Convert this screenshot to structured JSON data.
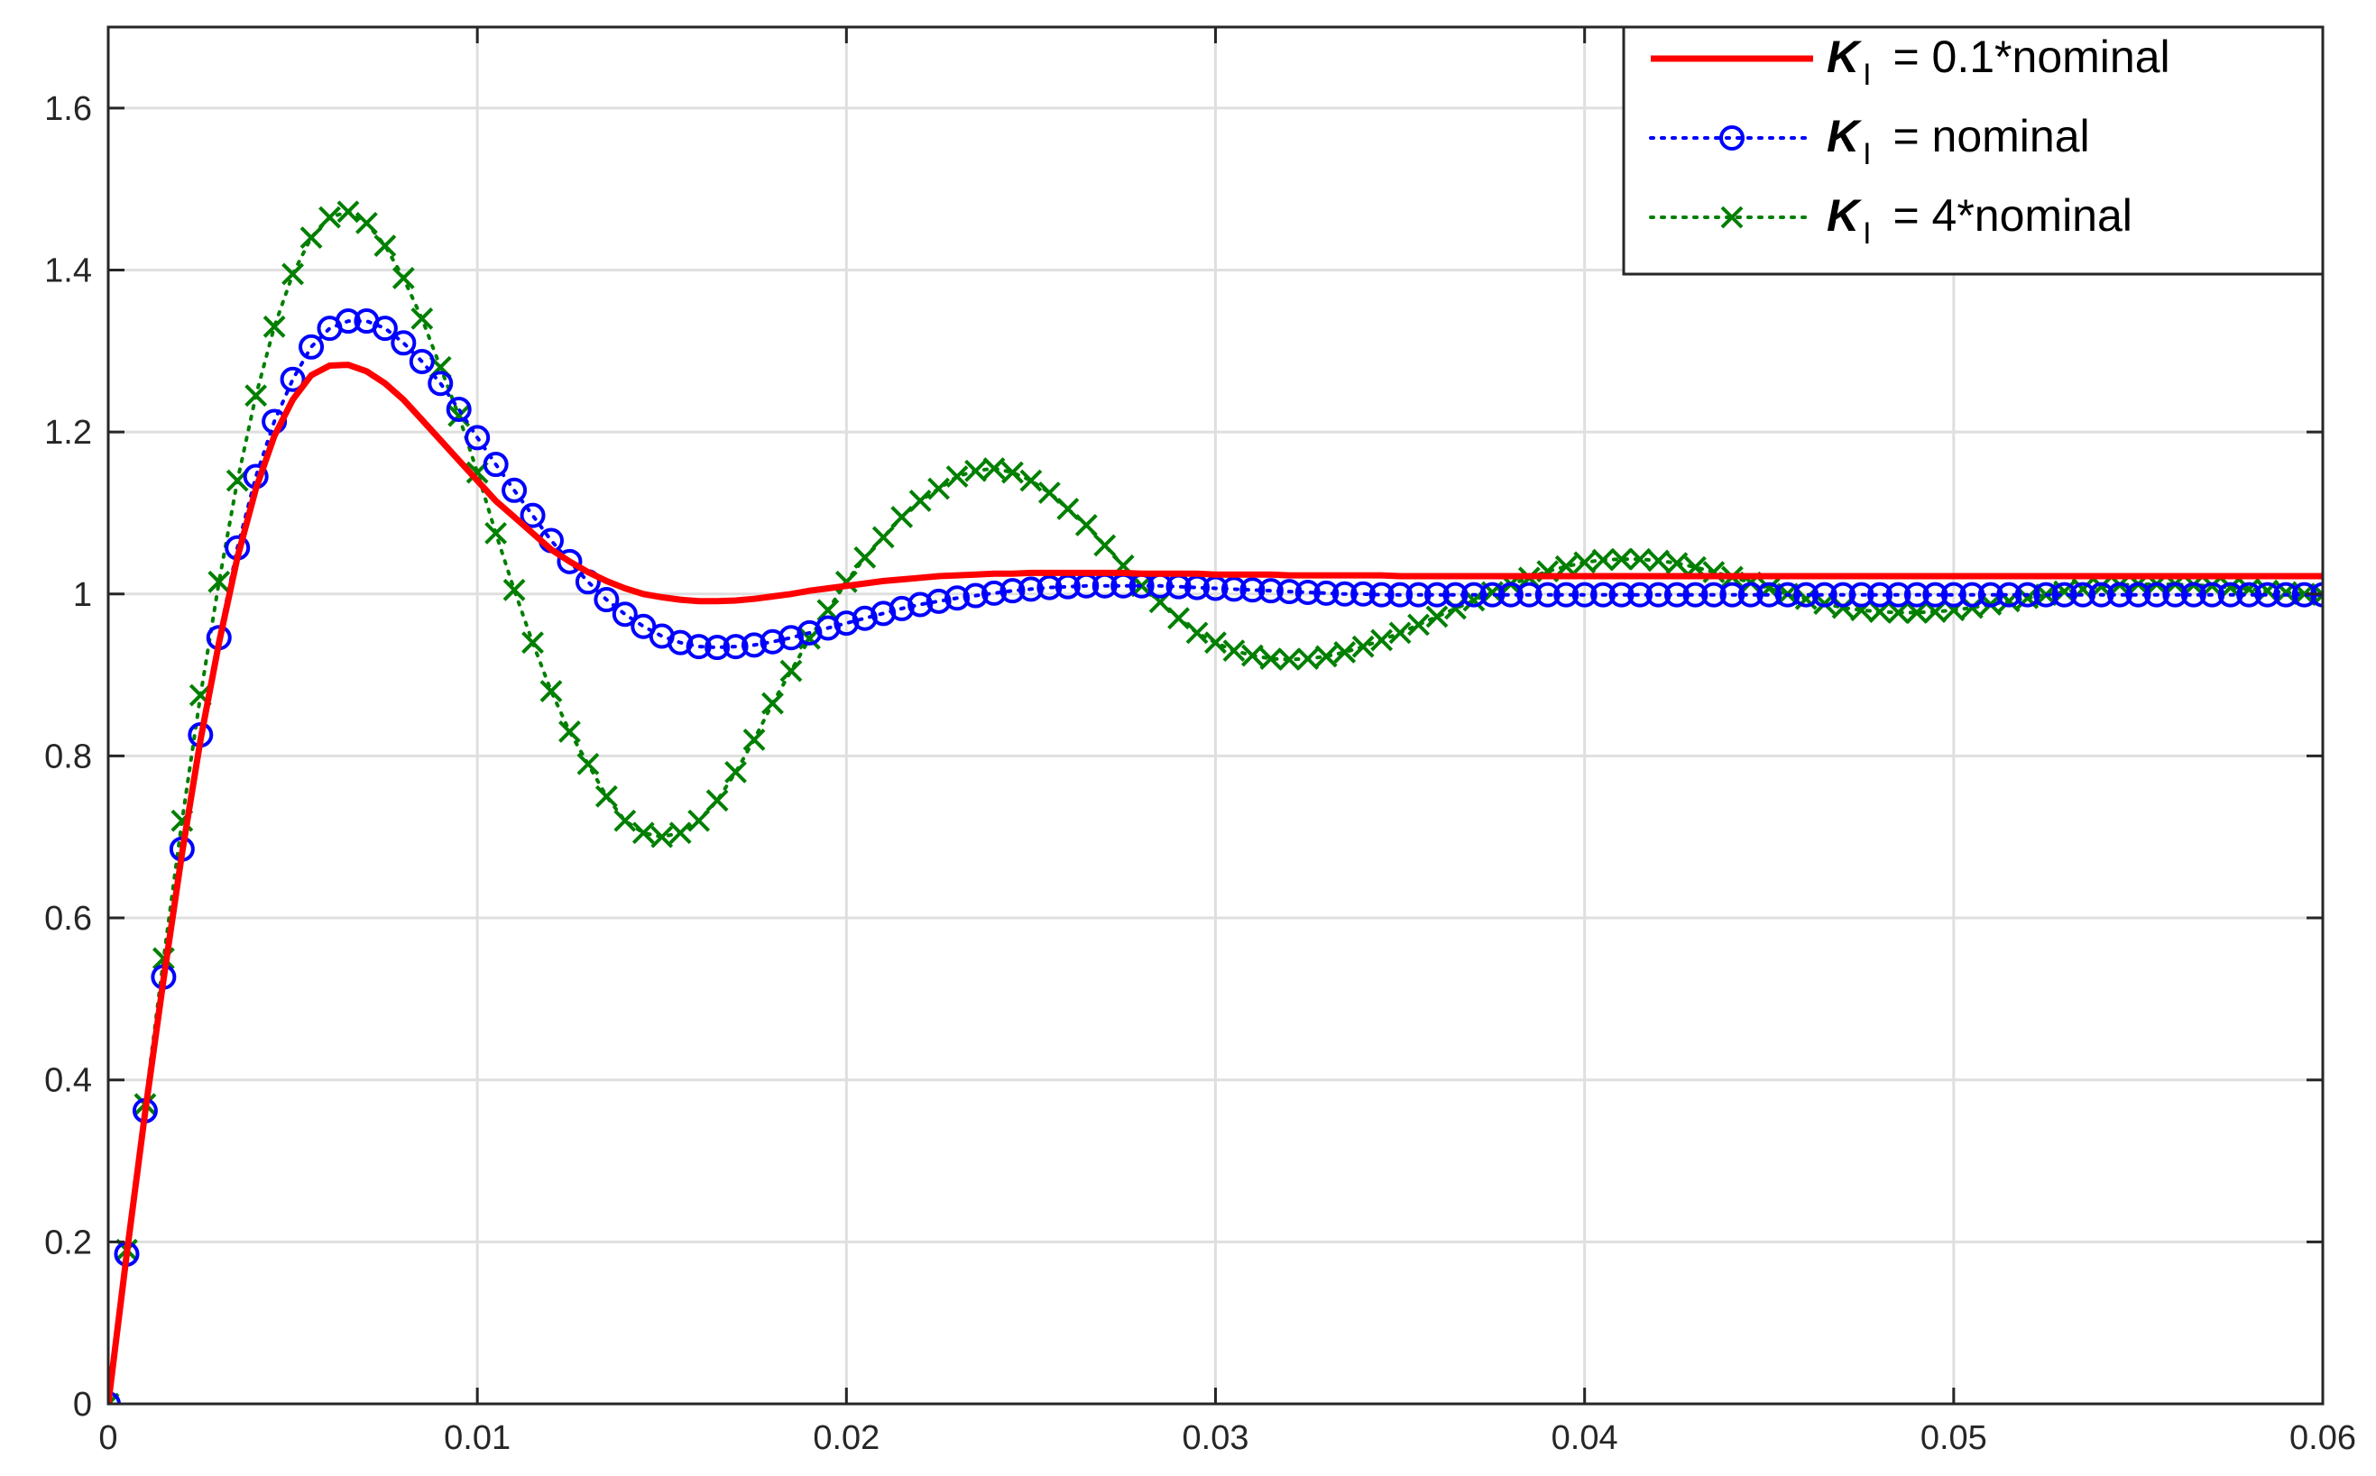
{
  "chart_data": {
    "type": "line",
    "title": "",
    "xlabel": "",
    "ylabel": "",
    "xlim": [
      0,
      0.06
    ],
    "ylim": [
      0,
      1.7
    ],
    "xticks": [
      0,
      0.01,
      0.02,
      0.03,
      0.04,
      0.05,
      0.06
    ],
    "xtick_labels": [
      "0",
      "0.01",
      "0.02",
      "0.03",
      "0.04",
      "0.05",
      "0.06"
    ],
    "yticks": [
      0,
      0.2,
      0.4,
      0.6,
      0.8,
      1,
      1.2,
      1.4,
      1.6
    ],
    "ytick_labels": [
      "0",
      "0.2",
      "0.4",
      "0.6",
      "0.8",
      "1",
      "1.2",
      "1.4",
      "1.6"
    ],
    "grid": true,
    "legend_position": "top-right",
    "legend": [
      {
        "symbol": "K",
        "subscript": "I",
        "text": " = 0.1*nominal"
      },
      {
        "symbol": "K",
        "subscript": "I",
        "text": " = nominal"
      },
      {
        "symbol": "K",
        "subscript": "I",
        "text": " = 4*nominal"
      }
    ],
    "series": [
      {
        "name": "K_I = 0.1*nominal",
        "color": "#ff0000",
        "line": "solid",
        "marker": "none",
        "x": [
          0,
          0.0005,
          0.001,
          0.0015,
          0.002,
          0.0025,
          0.003,
          0.0035,
          0.004,
          0.0045,
          0.005,
          0.0055,
          0.006,
          0.0065,
          0.007,
          0.0075,
          0.008,
          0.0085,
          0.009,
          0.0095,
          0.01,
          0.0105,
          0.011,
          0.0115,
          0.012,
          0.0125,
          0.013,
          0.0135,
          0.014,
          0.0145,
          0.015,
          0.0155,
          0.016,
          0.0165,
          0.017,
          0.0175,
          0.018,
          0.0185,
          0.019,
          0.0195,
          0.02,
          0.0205,
          0.021,
          0.0215,
          0.022,
          0.0225,
          0.023,
          0.0235,
          0.024,
          0.0245,
          0.025,
          0.0255,
          0.026,
          0.0265,
          0.027,
          0.0275,
          0.028,
          0.0285,
          0.029,
          0.0295,
          0.03,
          0.0305,
          0.031,
          0.0315,
          0.032,
          0.0325,
          0.033,
          0.0335,
          0.034,
          0.0345,
          0.035,
          0.0355,
          0.036,
          0.0365,
          0.037,
          0.0375,
          0.038,
          0.0385,
          0.039,
          0.0395,
          0.04,
          0.0405,
          0.041,
          0.0415,
          0.042,
          0.0425,
          0.043,
          0.0435,
          0.044,
          0.0445,
          0.045,
          0.0455,
          0.046,
          0.0465,
          0.047,
          0.0475,
          0.048,
          0.0485,
          0.049,
          0.0495,
          0.05,
          0.0505,
          0.051,
          0.0515,
          0.052,
          0.0525,
          0.053,
          0.0535,
          0.054,
          0.0545,
          0.055,
          0.0555,
          0.056,
          0.0565,
          0.057,
          0.0575,
          0.058,
          0.0585,
          0.059,
          0.0595,
          0.06
        ],
        "y": [
          0,
          0.185,
          0.36,
          0.525,
          0.68,
          0.82,
          0.94,
          1.045,
          1.13,
          1.195,
          1.24,
          1.27,
          1.282,
          1.283,
          1.275,
          1.26,
          1.24,
          1.215,
          1.19,
          1.165,
          1.14,
          1.115,
          1.095,
          1.075,
          1.055,
          1.04,
          1.027,
          1.016,
          1.007,
          1.0,
          0.996,
          0.993,
          0.991,
          0.991,
          0.992,
          0.994,
          0.997,
          1.0,
          1.004,
          1.007,
          1.01,
          1.013,
          1.016,
          1.018,
          1.02,
          1.022,
          1.023,
          1.024,
          1.025,
          1.025,
          1.026,
          1.026,
          1.026,
          1.026,
          1.026,
          1.026,
          1.025,
          1.025,
          1.025,
          1.025,
          1.024,
          1.024,
          1.024,
          1.024,
          1.023,
          1.023,
          1.023,
          1.023,
          1.023,
          1.023,
          1.022,
          1.022,
          1.022,
          1.022,
          1.022,
          1.022,
          1.022,
          1.022,
          1.022,
          1.022,
          1.022,
          1.022,
          1.022,
          1.022,
          1.022,
          1.022,
          1.022,
          1.022,
          1.022,
          1.022,
          1.022,
          1.022,
          1.022,
          1.022,
          1.022,
          1.022,
          1.022,
          1.022,
          1.022,
          1.022,
          1.022,
          1.022,
          1.022,
          1.022,
          1.022,
          1.022,
          1.022,
          1.022,
          1.022,
          1.022,
          1.022,
          1.022,
          1.022,
          1.022,
          1.022,
          1.022,
          1.022,
          1.022,
          1.022,
          1.022,
          1.022
        ]
      },
      {
        "name": "K_I = nominal",
        "color": "#0000ff",
        "line": "dotted",
        "marker": "circle",
        "x": [
          0,
          0.0005,
          0.001,
          0.0015,
          0.002,
          0.0025,
          0.003,
          0.0035,
          0.004,
          0.0045,
          0.005,
          0.0055,
          0.006,
          0.0065,
          0.007,
          0.0075,
          0.008,
          0.0085,
          0.009,
          0.0095,
          0.01,
          0.0105,
          0.011,
          0.0115,
          0.012,
          0.0125,
          0.013,
          0.0135,
          0.014,
          0.0145,
          0.015,
          0.0155,
          0.016,
          0.0165,
          0.017,
          0.0175,
          0.018,
          0.0185,
          0.019,
          0.0195,
          0.02,
          0.0205,
          0.021,
          0.0215,
          0.022,
          0.0225,
          0.023,
          0.0235,
          0.024,
          0.0245,
          0.025,
          0.0255,
          0.026,
          0.0265,
          0.027,
          0.0275,
          0.028,
          0.0285,
          0.029,
          0.0295,
          0.03,
          0.0305,
          0.031,
          0.0315,
          0.032,
          0.0325,
          0.033,
          0.0335,
          0.034,
          0.0345,
          0.035,
          0.0355,
          0.036,
          0.0365,
          0.037,
          0.0375,
          0.038,
          0.0385,
          0.039,
          0.0395,
          0.04,
          0.0405,
          0.041,
          0.0415,
          0.042,
          0.0425,
          0.043,
          0.0435,
          0.044,
          0.0445,
          0.045,
          0.0455,
          0.046,
          0.0465,
          0.047,
          0.0475,
          0.048,
          0.0485,
          0.049,
          0.0495,
          0.05,
          0.0505,
          0.051,
          0.0515,
          0.052,
          0.0525,
          0.053,
          0.0535,
          0.054,
          0.0545,
          0.055,
          0.0555,
          0.056,
          0.0565,
          0.057,
          0.0575,
          0.058,
          0.0585,
          0.059,
          0.0595,
          0.06
        ],
        "y": [
          0,
          0.185,
          0.362,
          0.527,
          0.685,
          0.826,
          0.946,
          1.057,
          1.145,
          1.213,
          1.265,
          1.305,
          1.328,
          1.337,
          1.337,
          1.328,
          1.31,
          1.287,
          1.26,
          1.228,
          1.193,
          1.16,
          1.128,
          1.097,
          1.066,
          1.04,
          1.015,
          0.993,
          0.975,
          0.96,
          0.948,
          0.94,
          0.935,
          0.934,
          0.935,
          0.937,
          0.941,
          0.946,
          0.952,
          0.958,
          0.964,
          0.97,
          0.976,
          0.982,
          0.987,
          0.991,
          0.995,
          0.998,
          1.001,
          1.004,
          1.006,
          1.008,
          1.009,
          1.01,
          1.01,
          1.01,
          1.01,
          1.01,
          1.009,
          1.008,
          1.007,
          1.006,
          1.005,
          1.004,
          1.003,
          1.002,
          1.001,
          1.0,
          1.0,
          0.999,
          0.999,
          0.999,
          0.999,
          0.999,
          0.999,
          0.999,
          0.999,
          0.999,
          0.999,
          0.999,
          0.999,
          0.999,
          0.999,
          0.999,
          0.999,
          0.999,
          0.999,
          0.999,
          0.999,
          0.999,
          0.999,
          0.999,
          0.999,
          0.999,
          0.999,
          0.999,
          0.999,
          0.999,
          0.999,
          0.999,
          0.999,
          0.999,
          0.999,
          0.999,
          0.999,
          0.999,
          0.999,
          0.999,
          0.999,
          0.999,
          0.999,
          0.999,
          0.999,
          0.999,
          0.999,
          0.999,
          0.999,
          0.999,
          0.999,
          0.999,
          0.999
        ]
      },
      {
        "name": "K_I = 4*nominal",
        "color": "#007f00",
        "line": "dotted",
        "marker": "x",
        "x": [
          0,
          0.0005,
          0.001,
          0.0015,
          0.002,
          0.0025,
          0.003,
          0.0035,
          0.004,
          0.0045,
          0.005,
          0.0055,
          0.006,
          0.0065,
          0.007,
          0.0075,
          0.008,
          0.0085,
          0.009,
          0.0095,
          0.01,
          0.0105,
          0.011,
          0.0115,
          0.012,
          0.0125,
          0.013,
          0.0135,
          0.014,
          0.0145,
          0.015,
          0.0155,
          0.016,
          0.0165,
          0.017,
          0.0175,
          0.018,
          0.0185,
          0.019,
          0.0195,
          0.02,
          0.0205,
          0.021,
          0.0215,
          0.022,
          0.0225,
          0.023,
          0.0235,
          0.024,
          0.0245,
          0.025,
          0.0255,
          0.026,
          0.0265,
          0.027,
          0.0275,
          0.028,
          0.0285,
          0.029,
          0.0295,
          0.03,
          0.0305,
          0.031,
          0.0315,
          0.032,
          0.0325,
          0.033,
          0.0335,
          0.034,
          0.0345,
          0.035,
          0.0355,
          0.036,
          0.0365,
          0.037,
          0.0375,
          0.038,
          0.0385,
          0.039,
          0.0395,
          0.04,
          0.0405,
          0.041,
          0.0415,
          0.042,
          0.0425,
          0.043,
          0.0435,
          0.044,
          0.0445,
          0.045,
          0.0455,
          0.046,
          0.0465,
          0.047,
          0.0475,
          0.048,
          0.0485,
          0.049,
          0.0495,
          0.05,
          0.0505,
          0.051,
          0.0515,
          0.052,
          0.0525,
          0.053,
          0.0535,
          0.054,
          0.0545,
          0.055,
          0.0555,
          0.056,
          0.0565,
          0.057,
          0.0575,
          0.058,
          0.0585,
          0.059,
          0.0595,
          0.06
        ],
        "y": [
          0,
          0.19,
          0.37,
          0.55,
          0.72,
          0.875,
          1.015,
          1.14,
          1.245,
          1.33,
          1.395,
          1.44,
          1.465,
          1.472,
          1.458,
          1.43,
          1.39,
          1.34,
          1.28,
          1.22,
          1.15,
          1.075,
          1.005,
          0.94,
          0.88,
          0.83,
          0.79,
          0.75,
          0.72,
          0.705,
          0.7,
          0.705,
          0.72,
          0.745,
          0.78,
          0.82,
          0.865,
          0.905,
          0.945,
          0.98,
          1.015,
          1.045,
          1.07,
          1.095,
          1.115,
          1.13,
          1.145,
          1.152,
          1.155,
          1.15,
          1.14,
          1.125,
          1.105,
          1.085,
          1.06,
          1.035,
          1.01,
          0.99,
          0.97,
          0.952,
          0.94,
          0.93,
          0.924,
          0.92,
          0.919,
          0.92,
          0.923,
          0.928,
          0.935,
          0.943,
          0.952,
          0.962,
          0.972,
          0.982,
          0.992,
          1.002,
          1.012,
          1.02,
          1.028,
          1.034,
          1.039,
          1.042,
          1.043,
          1.043,
          1.041,
          1.038,
          1.033,
          1.027,
          1.021,
          1.014,
          1.007,
          1.0,
          0.994,
          0.988,
          0.983,
          0.98,
          0.978,
          0.977,
          0.977,
          0.978,
          0.98,
          0.983,
          0.987,
          0.991,
          0.995,
          0.999,
          1.003,
          1.006,
          1.009,
          1.011,
          1.012,
          1.012,
          1.012,
          1.011,
          1.01,
          1.008,
          1.006,
          1.004,
          1.002,
          1.0,
          0.999
        ]
      }
    ]
  }
}
